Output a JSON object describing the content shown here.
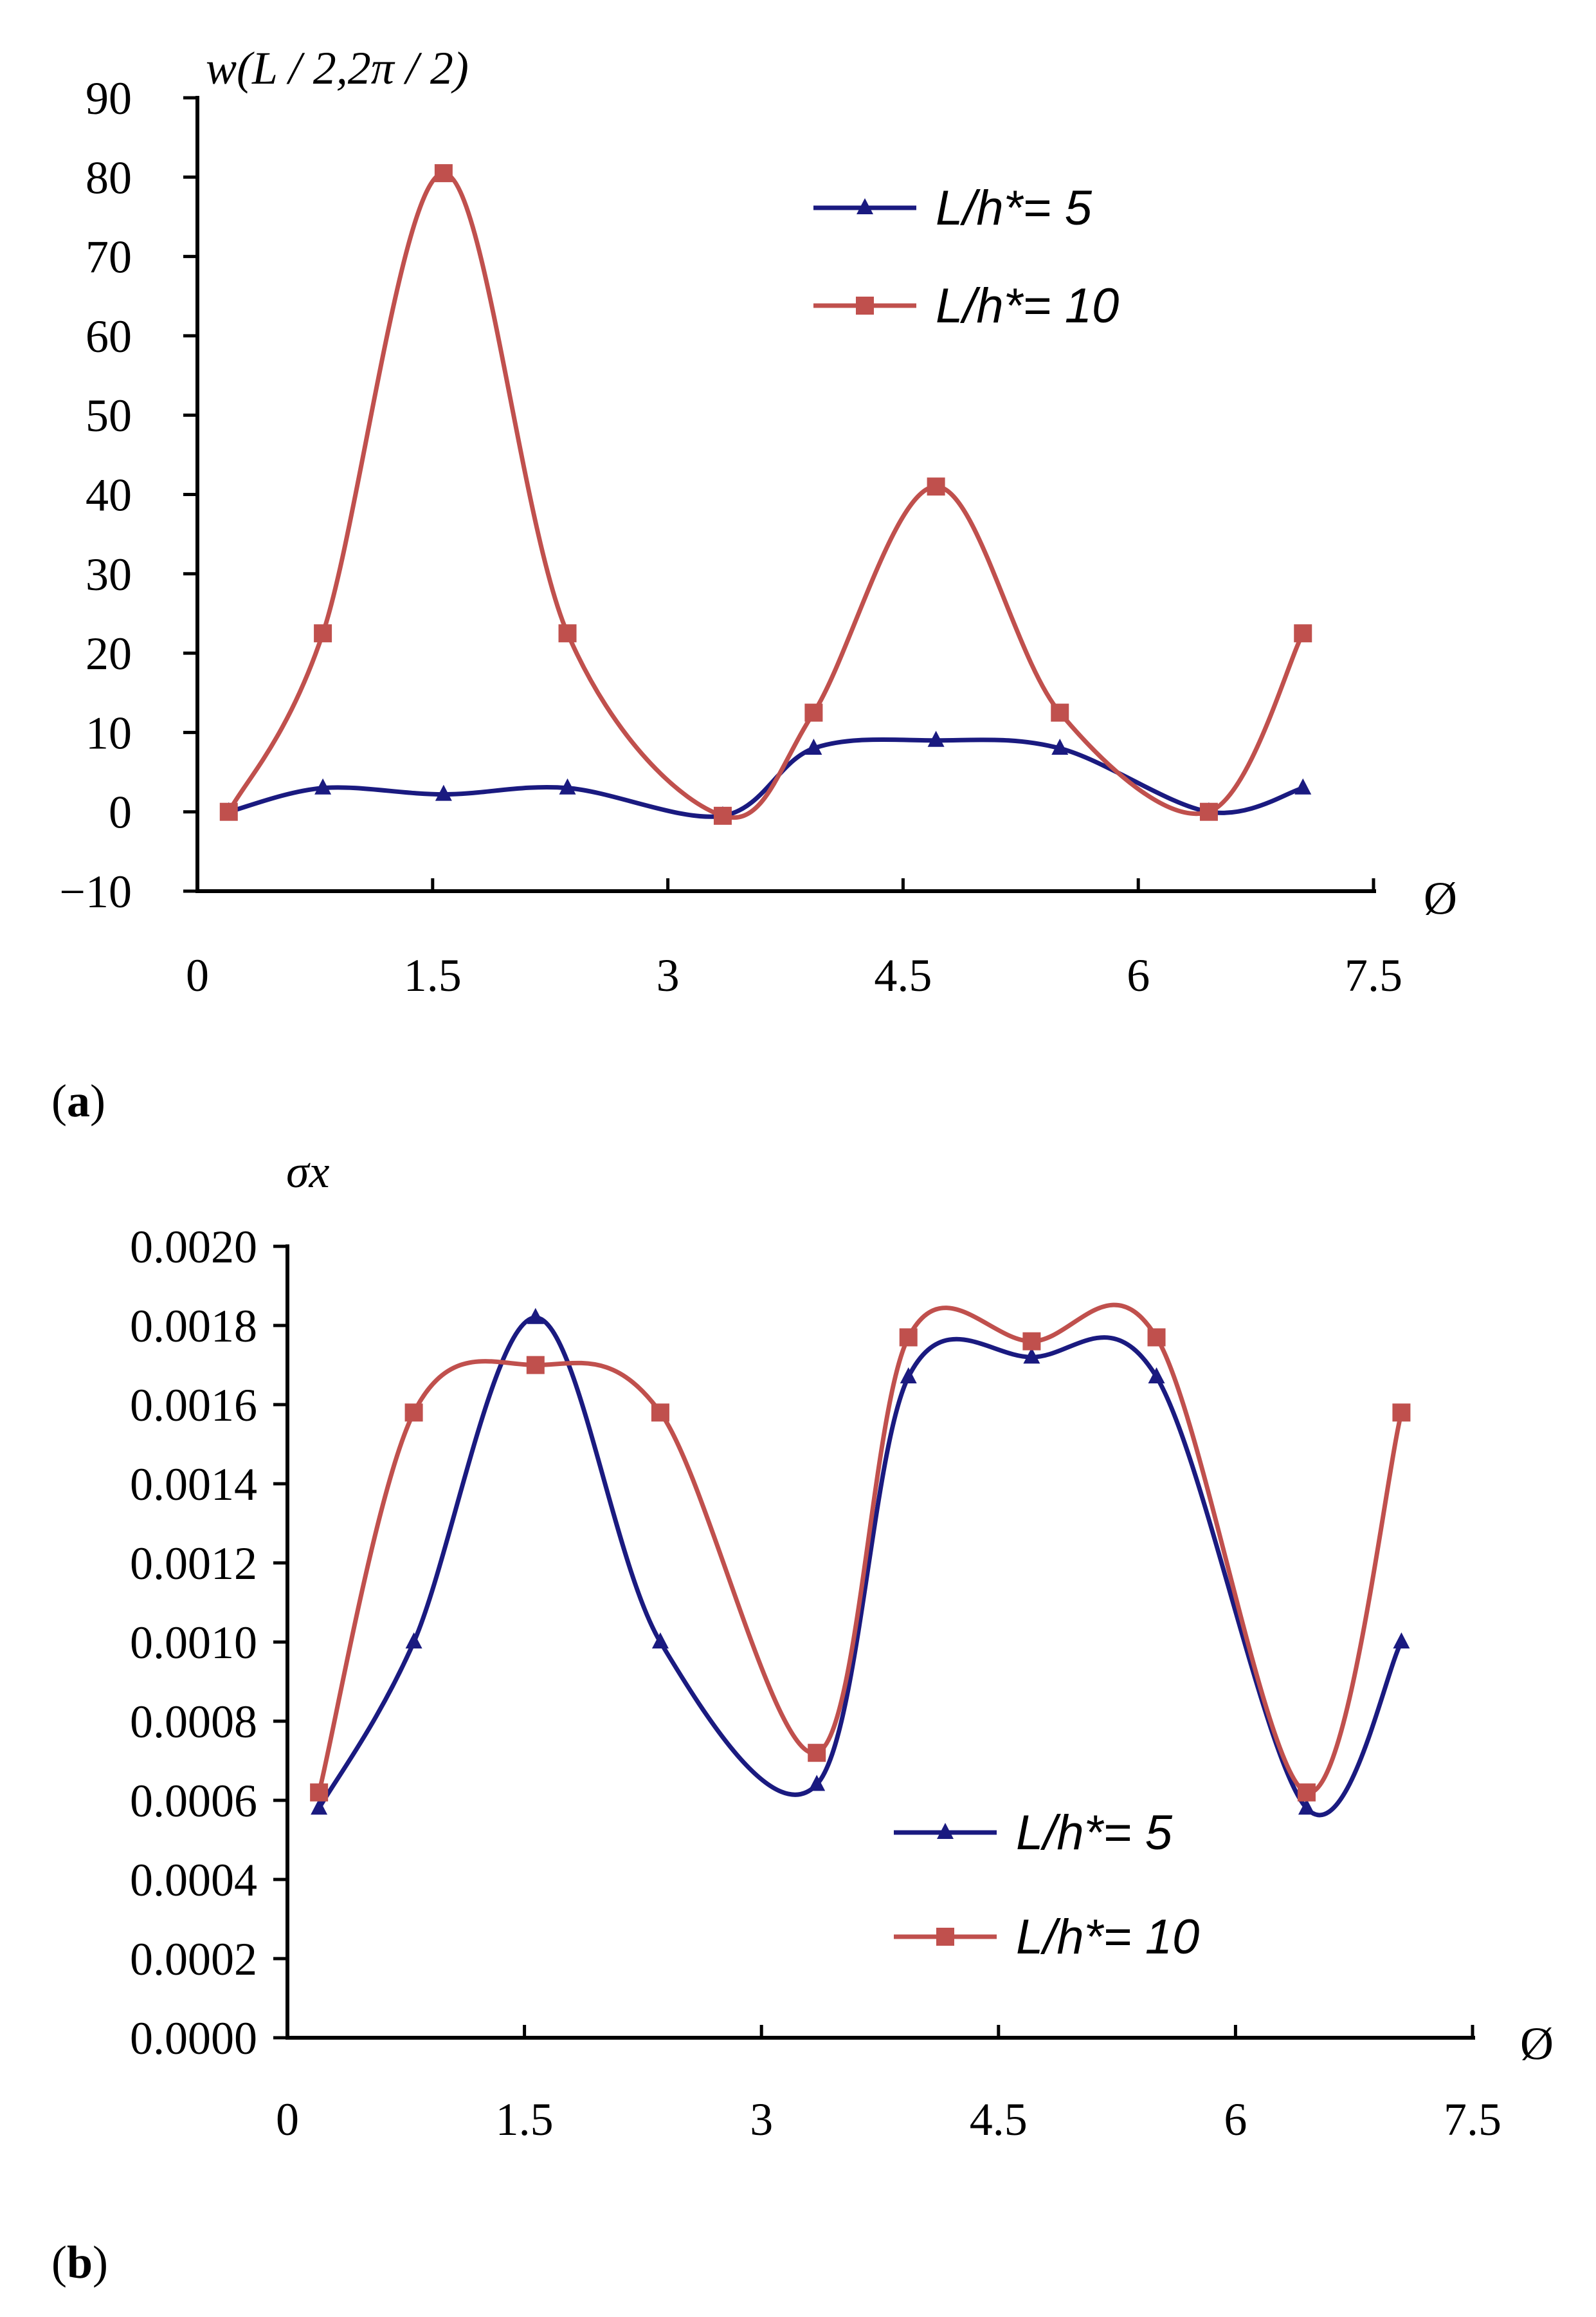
{
  "colors": {
    "series_1": "#1a1a80",
    "series_2": "#c0504d"
  },
  "chart_data": [
    {
      "type": "line",
      "panel_label": "a",
      "ylabel": "w(L / 2,2π / 2)",
      "xlabel": "Ø",
      "xlim": [
        0,
        7.5
      ],
      "ylim": [
        -10,
        90
      ],
      "xticks": [
        "0",
        "1.5",
        "3",
        "4.5",
        "6",
        "7.5"
      ],
      "yticks": [
        "−10",
        "0",
        "10",
        "20",
        "30",
        "40",
        "50",
        "60",
        "70",
        "80",
        "90"
      ],
      "legend_position": "top-right",
      "series": [
        {
          "name": "L/h*= 5",
          "marker": "triangle",
          "x": [
            0.2,
            0.8,
            1.57,
            2.36,
            3.35,
            3.93,
            4.71,
            5.5,
            6.45,
            7.05
          ],
          "y": [
            0,
            3,
            2.2,
            3,
            -0.5,
            8,
            9,
            8,
            0,
            3
          ]
        },
        {
          "name": "L/h*= 10",
          "marker": "square",
          "x": [
            0.2,
            0.8,
            1.57,
            2.36,
            3.35,
            3.93,
            4.71,
            5.5,
            6.45,
            7.05
          ],
          "y": [
            0,
            22.5,
            80.5,
            22.5,
            -0.5,
            12.5,
            41,
            12.5,
            0,
            22.5
          ]
        }
      ]
    },
    {
      "type": "line",
      "panel_label": "b",
      "ylabel": "σx",
      "xlabel": "Ø",
      "xlim": [
        0,
        7.5
      ],
      "ylim": [
        0,
        0.002
      ],
      "xticks": [
        "0",
        "1.5",
        "3",
        "4.5",
        "6",
        "7.5"
      ],
      "yticks": [
        "0.0000",
        "0.0002",
        "0.0004",
        "0.0006",
        "0.0008",
        "0.0010",
        "0.0012",
        "0.0014",
        "0.0016",
        "0.0018",
        "0.0020"
      ],
      "legend_position": "bottom-right",
      "series": [
        {
          "name": "L/h*= 5",
          "marker": "triangle",
          "x": [
            0.2,
            0.8,
            1.57,
            2.36,
            3.35,
            3.93,
            4.71,
            5.5,
            6.45,
            7.05
          ],
          "y": [
            0.00058,
            0.001,
            0.00182,
            0.001,
            0.00064,
            0.00167,
            0.00172,
            0.00167,
            0.00058,
            0.001
          ]
        },
        {
          "name": "L/h*= 10",
          "marker": "square",
          "x": [
            0.2,
            0.8,
            1.57,
            2.36,
            3.35,
            3.93,
            4.71,
            5.5,
            6.45,
            7.05
          ],
          "y": [
            0.00062,
            0.00158,
            0.0017,
            0.00158,
            0.00072,
            0.00177,
            0.00176,
            0.00177,
            0.00062,
            0.00158
          ]
        }
      ]
    }
  ]
}
